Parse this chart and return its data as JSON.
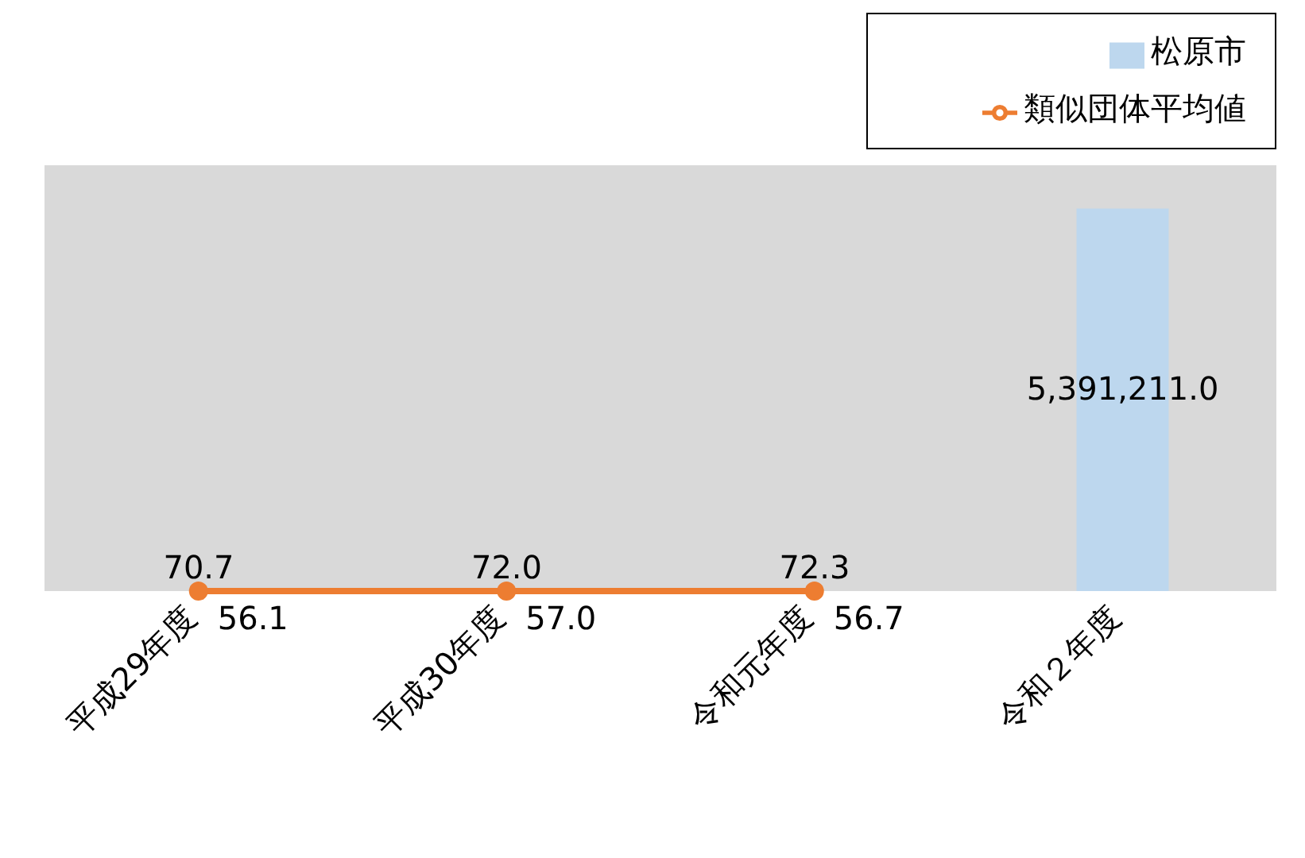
{
  "chart_data": {
    "type": "bar",
    "categories": [
      "平成29年度",
      "平成30年度",
      "令和元年度",
      "令和２年度"
    ],
    "series": [
      {
        "name": "松原市",
        "color": "#bdd7ee",
        "values": [
          70.7,
          72.0,
          72.3,
          5391211.0
        ],
        "value_labels": [
          "70.7",
          "72.0",
          "72.3",
          "5,391,211.0"
        ]
      },
      {
        "name": "類似団体平均値",
        "type": "line",
        "color": "#ed7d31",
        "values": [
          56.1,
          57.0,
          56.7,
          null
        ],
        "value_labels": [
          "56.1",
          "57.0",
          "56.7",
          null
        ],
        "marker": "circle"
      }
    ],
    "legend": "top right",
    "tick_labels": "x",
    "grid": false
  }
}
